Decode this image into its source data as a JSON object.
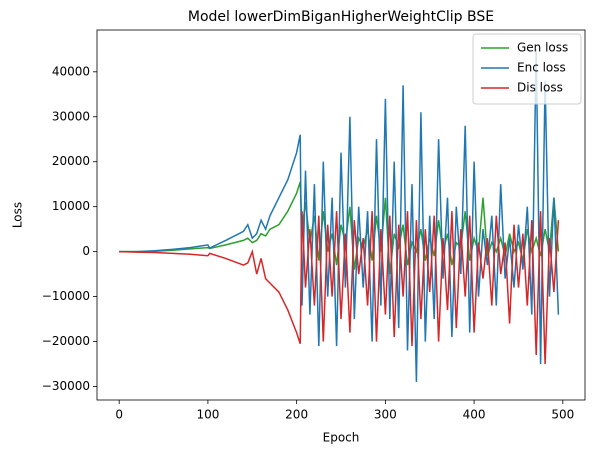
{
  "chart_data": {
    "type": "line",
    "title": "Model lowerDimBiganHigherWeightClip BSE",
    "x_label": "Epoch",
    "y_label": "Loss",
    "xlim": [
      -25,
      525
    ],
    "ylim": [
      -33000,
      49300
    ],
    "xticks": [
      0,
      100,
      200,
      300,
      400,
      500
    ],
    "yticks": [
      {
        "value": -30000,
        "label": "−30000"
      },
      {
        "value": -20000,
        "label": "−20000"
      },
      {
        "value": -10000,
        "label": "−10000"
      },
      0,
      10000,
      20000,
      30000,
      40000
    ],
    "legend": "upper right",
    "x": [
      0,
      20,
      40,
      60,
      80,
      100,
      102,
      120,
      140,
      145,
      150,
      155,
      160,
      165,
      170,
      180,
      190,
      200,
      204,
      206,
      210,
      215,
      220,
      225,
      230,
      235,
      240,
      245,
      250,
      255,
      260,
      265,
      270,
      275,
      280,
      285,
      290,
      295,
      300,
      305,
      310,
      315,
      320,
      325,
      330,
      335,
      340,
      345,
      350,
      355,
      360,
      365,
      370,
      375,
      380,
      385,
      390,
      395,
      400,
      405,
      410,
      415,
      420,
      425,
      430,
      435,
      440,
      445,
      450,
      455,
      460,
      465,
      470,
      475,
      480,
      485,
      490,
      495
    ],
    "series": [
      {
        "name": "Gen loss",
        "color": "#2ca02c",
        "values": [
          0,
          0,
          100,
          300,
          600,
          900,
          700,
          1500,
          2500,
          3000,
          2000,
          2500,
          4000,
          3500,
          5000,
          6000,
          9000,
          13000,
          15500,
          5000,
          11000,
          2000,
          8000,
          -2000,
          9000,
          0,
          4000,
          -3000,
          6000,
          2000,
          10000,
          -4000,
          3000,
          1000,
          5000,
          -2000,
          8000,
          0,
          12000,
          -5000,
          4000,
          1000,
          6000,
          -3000,
          2000,
          0,
          5000,
          -2000,
          3000,
          -1000,
          7000,
          0,
          4000,
          -3000,
          2000,
          1000,
          9000,
          -2000,
          3000,
          0,
          12000,
          -1000,
          2000,
          0,
          3000,
          -1000,
          4000,
          0,
          2000,
          -2000,
          5000,
          0,
          3000,
          -1000,
          5000,
          0,
          12000,
          0
        ]
      },
      {
        "name": "Enc loss",
        "color": "#1f77b4",
        "values": [
          0,
          0,
          200,
          500,
          900,
          1500,
          800,
          2500,
          4500,
          6000,
          3000,
          4000,
          7000,
          5000,
          8000,
          12000,
          16000,
          22000,
          26000,
          -12000,
          18000,
          -14000,
          15000,
          -21000,
          20000,
          -10000,
          12000,
          -21000,
          22000,
          -8000,
          30000,
          -15000,
          10000,
          -8000,
          9000,
          -20000,
          25000,
          -12000,
          34000,
          -15000,
          20000,
          -17000,
          37000,
          -22000,
          15000,
          -29000,
          31000,
          -20000,
          8000,
          -15000,
          25000,
          -6000,
          12000,
          -19000,
          10000,
          -5000,
          28000,
          -18000,
          20000,
          -10000,
          5000,
          -3000,
          8000,
          -12000,
          15000,
          -6000,
          3000,
          -8000,
          6000,
          -4000,
          10000,
          -14000,
          45000,
          -25000,
          38000,
          -10000,
          12000,
          -14000
        ]
      },
      {
        "name": "Dis loss",
        "color": "#d62728",
        "values": [
          0,
          -100,
          -200,
          -400,
          -600,
          -900,
          -400,
          -1500,
          -3000,
          -2500,
          0,
          -5000,
          -1500,
          -6000,
          -7000,
          -9000,
          -13000,
          -18000,
          -20500,
          9000,
          -8000,
          5000,
          -12000,
          8000,
          -20000,
          6000,
          -10000,
          9000,
          -15000,
          4000,
          -18000,
          7000,
          -5000,
          3000,
          -12000,
          9000,
          -20000,
          5000,
          -14000,
          8000,
          -19000,
          6000,
          -10000,
          9000,
          -21000,
          7000,
          -15000,
          5000,
          -9000,
          8000,
          -20000,
          3000,
          -13000,
          9000,
          -17000,
          5000,
          -10000,
          8000,
          -18000,
          2000,
          -6000,
          3000,
          -12000,
          8000,
          -5000,
          2000,
          -16000,
          6000,
          -8000,
          4000,
          -12000,
          7000,
          -23000,
          9000,
          -25000,
          3000,
          -9000,
          7000
        ]
      }
    ]
  }
}
